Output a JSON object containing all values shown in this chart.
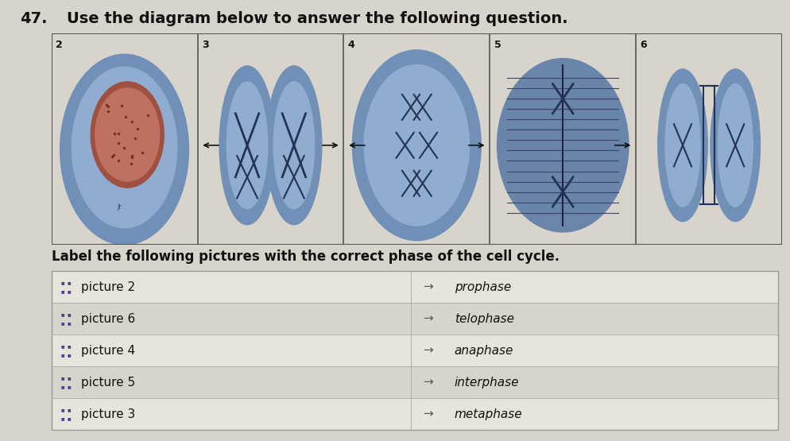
{
  "title_number": "47.",
  "title_text": "Use the diagram below to answer the following question.",
  "subtitle": "Label the following pictures with the correct phase of the cell cycle.",
  "bg_color": "#d8d4cc",
  "table_bg_even": "#e8e4dc",
  "table_bg_odd": "#d8d4cc",
  "left_items": [
    "picture 2",
    "picture 6",
    "picture 4",
    "picture 5",
    "picture 3"
  ],
  "right_items": [
    "prophase",
    "telophase",
    "anaphase",
    "interphase",
    "metaphase"
  ],
  "arrow": "→",
  "font_size_title": 14,
  "font_size_sub": 12,
  "font_size_table": 11,
  "table_line_color": "#aaaaaa",
  "text_color": "#111111",
  "dot_color": "#444488",
  "pic_nums": [
    "2",
    "3",
    "4",
    "5",
    "6"
  ],
  "cell_outer_color": "#8da8cc",
  "cell_inner_color": "#b0c4de",
  "nucleus_color": "#c07060",
  "nucleus_ring_color": "#a05040",
  "chrom_color": "#223355"
}
